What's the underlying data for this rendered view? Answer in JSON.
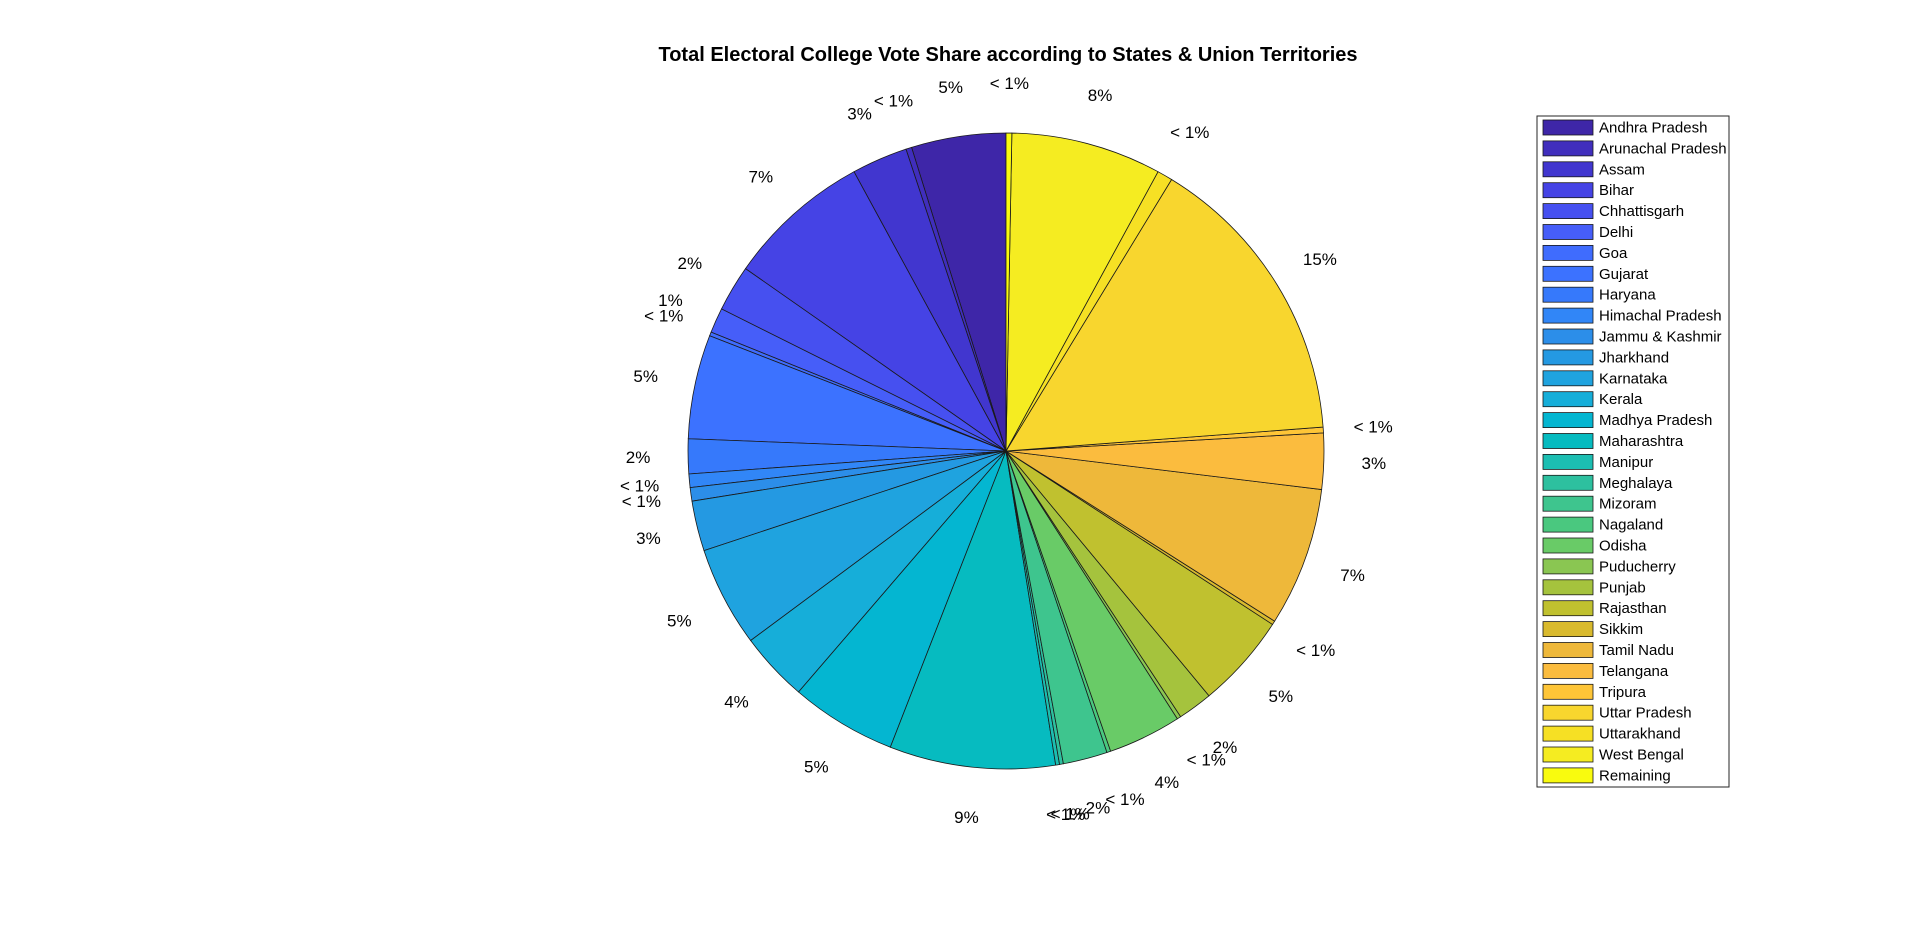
{
  "chart_data": {
    "type": "pie",
    "title": "Total Electoral College Vote Share according to States & Union Territories",
    "legend_position": "right",
    "start_angle_deg": 90,
    "direction": "counterclockwise",
    "slices": [
      {
        "name": "Andhra Pradesh",
        "value": 4.9,
        "label": "5%",
        "color": "#3e26a8"
      },
      {
        "name": "Arunachal Pradesh",
        "value": 0.3,
        "label": "< 1%",
        "color": "#402ebd"
      },
      {
        "name": "Assam",
        "value": 2.9,
        "label": "3%",
        "color": "#4136cf"
      },
      {
        "name": "Bihar",
        "value": 7.5,
        "label": "7%",
        "color": "#4543e5"
      },
      {
        "name": "Chhattisgarh",
        "value": 2.4,
        "label": "2%",
        "color": "#4650f0"
      },
      {
        "name": "Delhi",
        "value": 1.3,
        "label": "1%",
        "color": "#465ef9"
      },
      {
        "name": "Goa",
        "value": 0.2,
        "label": "< 1%",
        "color": "#3f6cfe"
      },
      {
        "name": "Gujarat",
        "value": 5.4,
        "label": "5%",
        "color": "#3c72ff"
      },
      {
        "name": "Haryana",
        "value": 1.8,
        "label": "2%",
        "color": "#3679fb"
      },
      {
        "name": "Himachal Pradesh",
        "value": 0.7,
        "label": "< 1%",
        "color": "#3186f7"
      },
      {
        "name": "Jammu & Kashmir",
        "value": 0.7,
        "label": "< 1%",
        "color": "#2c8ee9"
      },
      {
        "name": "Jharkhand",
        "value": 2.6,
        "label": "3%",
        "color": "#2499e2"
      },
      {
        "name": "Karnataka",
        "value": 5.2,
        "label": "5%",
        "color": "#1fa3df"
      },
      {
        "name": "Kerala",
        "value": 3.6,
        "label": "4%",
        "color": "#16aed9"
      },
      {
        "name": "Madhya Pradesh",
        "value": 5.5,
        "label": "5%",
        "color": "#04b6d1"
      },
      {
        "name": "Maharashtra",
        "value": 8.6,
        "label": "9%",
        "color": "#06bbc0"
      },
      {
        "name": "Manipur",
        "value": 0.2,
        "label": "< 1%",
        "color": "#1cbeb2"
      },
      {
        "name": "Meghalaya",
        "value": 0.2,
        "label": "< 1%",
        "color": "#2dc09f"
      },
      {
        "name": "Mizoram",
        "value": 2.3,
        "label": "2%",
        "color": "#3ec58e"
      },
      {
        "name": "Nagaland",
        "value": 0.2,
        "label": "< 1%",
        "color": "#4ac87f"
      },
      {
        "name": "Odisha",
        "value": 3.8,
        "label": "4%",
        "color": "#69cb67"
      },
      {
        "name": "Puducherry",
        "value": 0.2,
        "label": "< 1%",
        "color": "#8ac652"
      },
      {
        "name": "Punjab",
        "value": 1.8,
        "label": "2%",
        "color": "#a5c33d"
      },
      {
        "name": "Rajasthan",
        "value": 4.9,
        "label": "5%",
        "color": "#c0c12f"
      },
      {
        "name": "Sikkim",
        "value": 0.2,
        "label": "< 1%",
        "color": "#d9ba2e"
      },
      {
        "name": "Tamil Nadu",
        "value": 7.2,
        "label": "7%",
        "color": "#eeb83a"
      },
      {
        "name": "Telangana",
        "value": 2.9,
        "label": "3%",
        "color": "#fbbc3e"
      },
      {
        "name": "Tripura",
        "value": 0.3,
        "label": "< 1%",
        "color": "#fec537"
      },
      {
        "name": "Uttar Pradesh",
        "value": 15.4,
        "label": "15%",
        "color": "#f8d62e"
      },
      {
        "name": "Uttarakhand",
        "value": 0.8,
        "label": "< 1%",
        "color": "#f6e024"
      },
      {
        "name": "West Bengal",
        "value": 7.8,
        "label": "8%",
        "color": "#f5ec21"
      },
      {
        "name": "Remaining",
        "value": 0.3,
        "label": "< 1%",
        "color": "#f9fb0e"
      }
    ]
  }
}
